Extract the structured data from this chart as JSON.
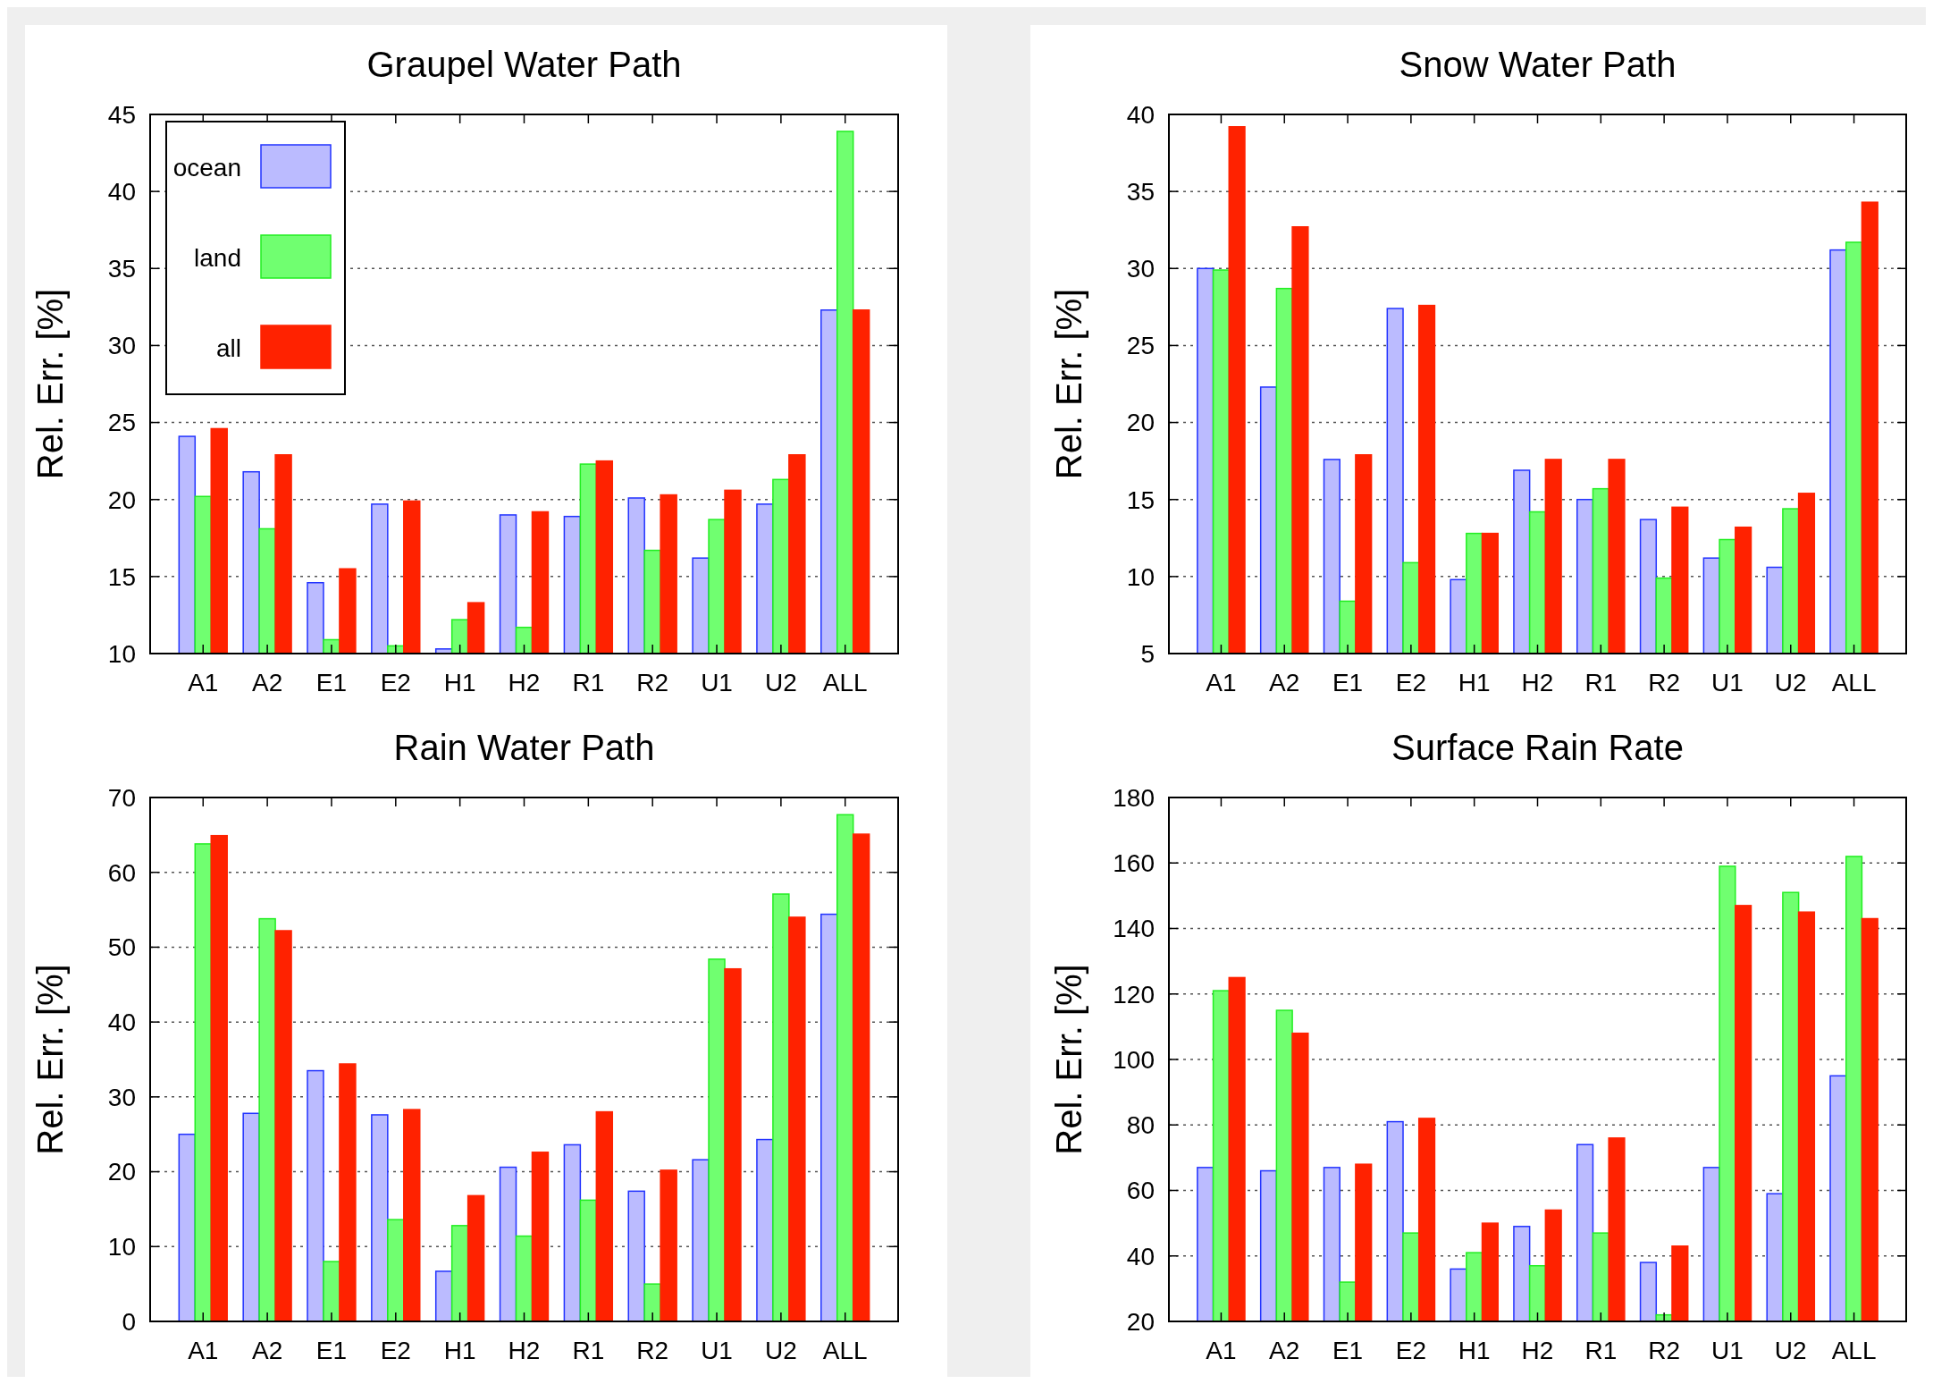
{
  "chart_data": [
    {
      "type": "bar",
      "title": "Graupel Water Path",
      "ylabel": "Rel. Err. [%]",
      "categories": [
        "A1",
        "A2",
        "E1",
        "E2",
        "H1",
        "H2",
        "R1",
        "R2",
        "U1",
        "U2",
        "ALL"
      ],
      "ylim": [
        10,
        45
      ],
      "yticks": [
        10,
        15,
        20,
        25,
        30,
        35,
        40,
        45
      ],
      "grid": "y",
      "legend": "top left",
      "series": [
        {
          "name": "ocean",
          "color": "#bbbbff",
          "values": [
            24.1,
            21.8,
            14.6,
            19.7,
            10.3,
            19.0,
            18.9,
            20.1,
            16.2,
            19.7,
            32.3
          ]
        },
        {
          "name": "land",
          "color": "#70ff70",
          "values": [
            20.2,
            18.1,
            10.9,
            10.5,
            12.2,
            11.7,
            22.3,
            16.7,
            18.7,
            21.3,
            43.9
          ]
        },
        {
          "name": "all",
          "color": "#ff2200",
          "values": [
            24.6,
            22.9,
            15.5,
            19.9,
            13.3,
            19.2,
            22.5,
            20.3,
            20.6,
            22.9,
            32.3
          ]
        }
      ]
    },
    {
      "type": "bar",
      "title": "Snow Water Path",
      "ylabel": "Rel. Err. [%]",
      "categories": [
        "A1",
        "A2",
        "E1",
        "E2",
        "H1",
        "H2",
        "R1",
        "R2",
        "U1",
        "U2",
        "ALL"
      ],
      "ylim": [
        5,
        40
      ],
      "yticks": [
        5,
        10,
        15,
        20,
        25,
        30,
        35,
        40
      ],
      "grid": "y",
      "series": [
        {
          "color": "#bbbbff",
          "values": [
            30.0,
            22.3,
            17.6,
            27.4,
            9.8,
            16.9,
            15.0,
            13.7,
            11.2,
            10.6,
            31.2
          ]
        },
        {
          "color": "#70ff70",
          "values": [
            29.9,
            28.7,
            8.4,
            10.9,
            12.8,
            14.2,
            15.7,
            9.9,
            12.4,
            14.4,
            31.7
          ]
        },
        {
          "color": "#ff2200",
          "values": [
            39.2,
            32.7,
            17.9,
            27.6,
            12.8,
            17.6,
            17.6,
            14.5,
            13.2,
            15.4,
            34.3
          ]
        }
      ]
    },
    {
      "type": "bar",
      "title": "Rain Water Path",
      "ylabel": "Rel. Err. [%]",
      "categories": [
        "A1",
        "A2",
        "E1",
        "E2",
        "H1",
        "H2",
        "R1",
        "R2",
        "U1",
        "U2",
        "ALL"
      ],
      "ylim": [
        0,
        70
      ],
      "yticks": [
        0,
        10,
        20,
        30,
        40,
        50,
        60,
        70
      ],
      "grid": "y",
      "series": [
        {
          "color": "#bbbbff",
          "values": [
            25.0,
            27.8,
            33.5,
            27.6,
            6.7,
            20.6,
            23.6,
            17.4,
            21.6,
            24.3,
            54.4
          ]
        },
        {
          "color": "#70ff70",
          "values": [
            63.8,
            53.8,
            8.0,
            13.6,
            12.8,
            11.4,
            16.2,
            5.0,
            48.4,
            57.1,
            67.7
          ]
        },
        {
          "color": "#ff2200",
          "values": [
            64.9,
            52.2,
            34.4,
            28.3,
            16.8,
            22.6,
            28.0,
            20.2,
            47.1,
            54.0,
            65.1
          ]
        }
      ]
    },
    {
      "type": "bar",
      "title": "Surface Rain Rate",
      "ylabel": "Rel. Err. [%]",
      "categories": [
        "A1",
        "A2",
        "E1",
        "E2",
        "H1",
        "H2",
        "R1",
        "R2",
        "U1",
        "U2",
        "ALL"
      ],
      "ylim": [
        20,
        180
      ],
      "yticks": [
        20,
        40,
        60,
        80,
        100,
        120,
        140,
        160,
        180
      ],
      "grid": "y",
      "series": [
        {
          "color": "#bbbbff",
          "values": [
            67,
            66,
            67,
            81,
            36,
            49,
            74,
            38,
            67,
            59,
            95
          ]
        },
        {
          "color": "#70ff70",
          "values": [
            121,
            115,
            32,
            47,
            41,
            37,
            47,
            22,
            159,
            151,
            162
          ]
        },
        {
          "color": "#ff2200",
          "values": [
            125,
            108,
            68,
            82,
            50,
            54,
            76,
            43,
            147,
            145,
            143
          ]
        }
      ]
    }
  ]
}
